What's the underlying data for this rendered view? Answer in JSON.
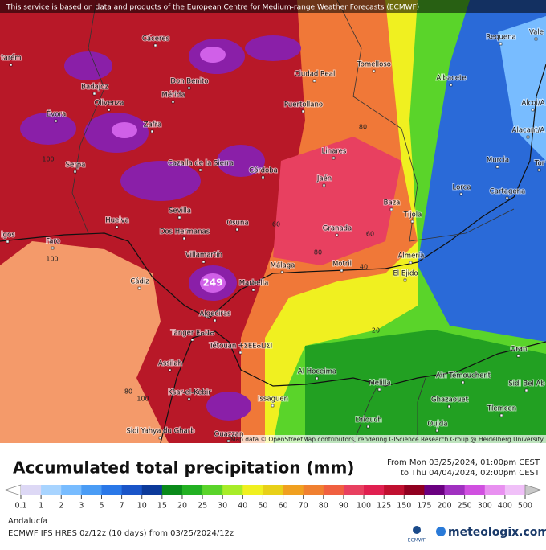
{
  "notice": "This service is based on data and products of the European Centre for Medium-range Weather Forecasts (ECMWF)",
  "attribution": "Map data © OpenStreetMap contributors, rendering GIScience Research Group @ Heidelberg University",
  "title": "Accumulated total precipitation (mm)",
  "period": [
    "From Mon 03/25/2024, 01:00pm CEST",
    "to Thu 04/04/2024, 02:00pm CEST"
  ],
  "region": "Andalucía",
  "model": "ECMWF IFS HRES 0z/12z (10 days) from  03/25/2024/12z",
  "ecmwf_logo": "ECMWF",
  "brand": "meteologix.com",
  "cities": [
    "Cáceres",
    "Badajoz",
    "Don Benito",
    "Mérida",
    "Olivenza",
    "Évora",
    "Zafra",
    "Serpa",
    "Cazalla de la Sierra",
    "Córdoba",
    "Sevilla",
    "Osuna",
    "Huelva",
    "Dos Hermanas",
    "Faro",
    "Villamartín",
    "Cádiz",
    "Marbella",
    "Málaga",
    "Motril",
    "Granada",
    "Jaén",
    "Linares",
    "Puertollano",
    "Ciudad Real",
    "Tomelloso",
    "Albacete",
    "Requena",
    "Vale",
    "Alcoi/A",
    "Alacant/A",
    "Murcia",
    "Tor",
    "Cartagena",
    "Lorca",
    "Baza",
    "Tíjola",
    "Almería",
    "El Ejido",
    "Algeciras",
    "Tanger ⵟⴰⵏⵊⴰ",
    "Tétouan ⵜⵉⵟⵟⴰⵡⵉⵏ",
    "Assilah",
    "Ksar-el-Kebir",
    "Al Hoceima",
    "Melilla",
    "Ain Témouchent",
    "Oran",
    "Sidi Bel Ab",
    "Tlemcen",
    "Ghazaouet",
    "Oujda",
    "Driouch",
    "Issaguen",
    "Ouazzan",
    "Sidi Yahya du Gharb",
    "tarém",
    "igos"
  ],
  "contour_labels": [
    100,
    100,
    80,
    100,
    60,
    80,
    40,
    20,
    80,
    60,
    249
  ],
  "legend": {
    "under_color": "#ffffff",
    "over_color": "#c8c8c8",
    "colors": [
      "#ddd8f5",
      "#a8d4ff",
      "#78bcff",
      "#4a9cf5",
      "#2a78e8",
      "#1a55c8",
      "#0c3a9a",
      "#0a8a1a",
      "#22b022",
      "#5ad42a",
      "#a8ec28",
      "#f0f020",
      "#e8d018",
      "#f0a020",
      "#f08030",
      "#f06040",
      "#e84060",
      "#e02050",
      "#c01030",
      "#900020",
      "#6a0080",
      "#a030c0",
      "#d050e0",
      "#e890f0",
      "#f0c0f8"
    ],
    "ticks": [
      0.1,
      1,
      2,
      3,
      5,
      7,
      10,
      15,
      20,
      25,
      30,
      40,
      50,
      60,
      70,
      80,
      90,
      100,
      125,
      150,
      175,
      200,
      250,
      300,
      400,
      500
    ]
  }
}
